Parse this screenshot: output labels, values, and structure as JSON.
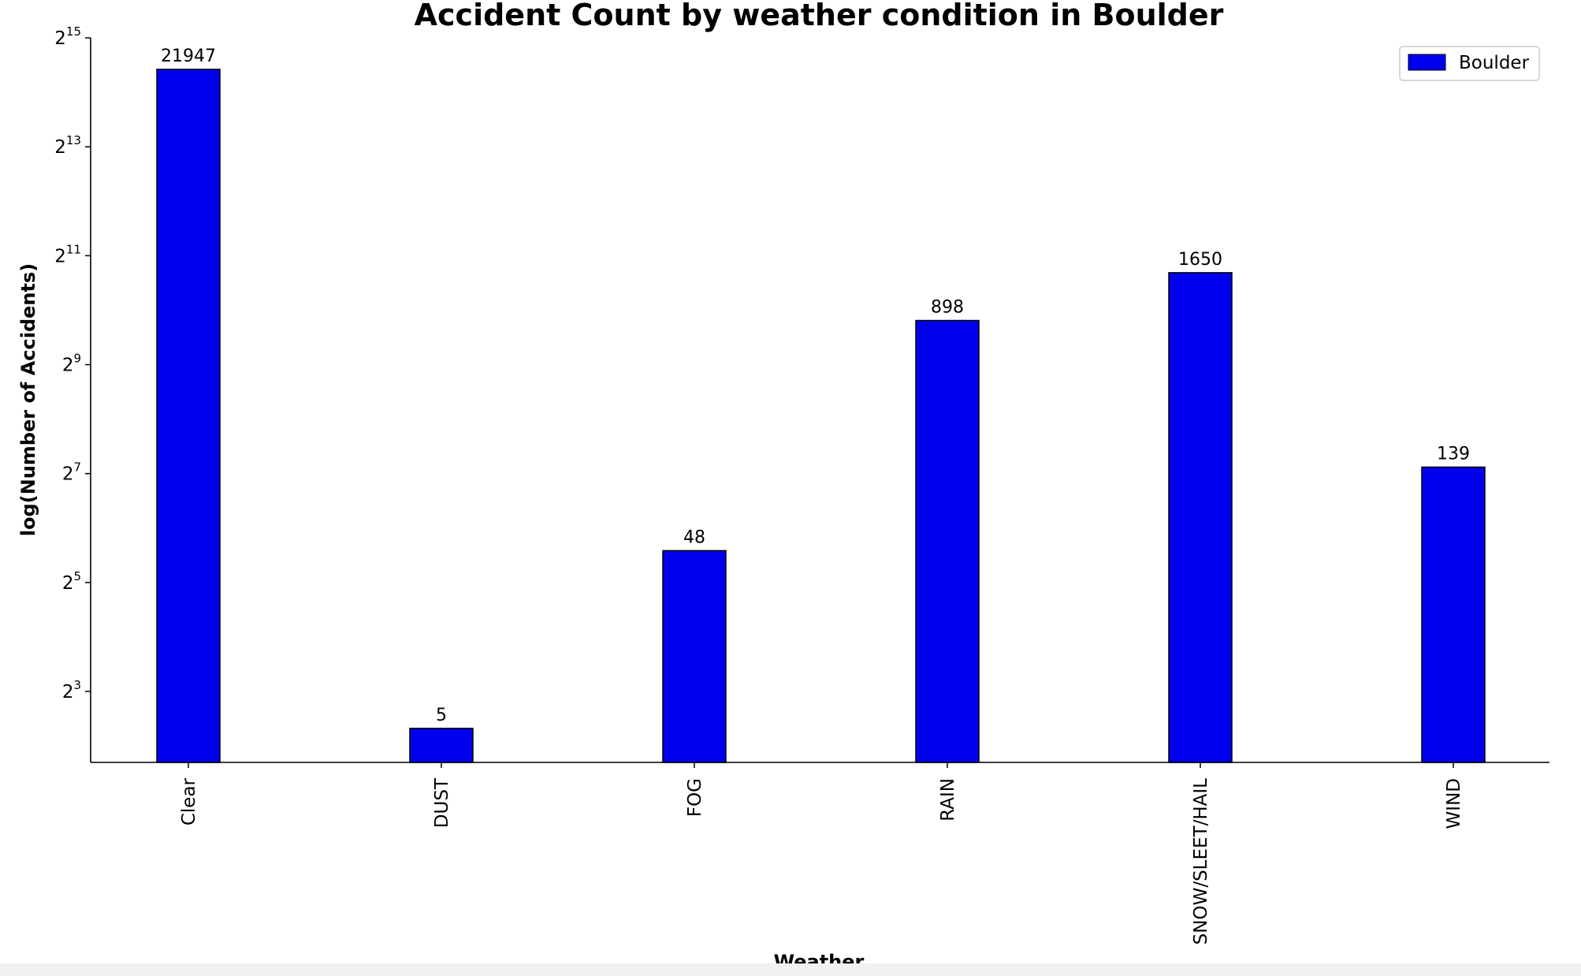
{
  "chart_data": {
    "type": "bar",
    "title": "Accident Count by weather condition in Boulder",
    "xlabel": "Weather",
    "ylabel": "log(Number of Accidents)",
    "categories": [
      "Clear",
      "DUST",
      "FOG",
      "RAIN",
      "SNOW/SLEET/HAIL",
      "WIND"
    ],
    "series": [
      {
        "name": "Boulder",
        "values": [
          21947,
          5,
          48,
          898,
          1650,
          139
        ],
        "color": "#0000ee"
      }
    ],
    "y_scale": "log2",
    "ylim": [
      2.7,
      28000
    ],
    "yticks": [
      {
        "base": "2",
        "exp": "3",
        "value": 8
      },
      {
        "base": "2",
        "exp": "5",
        "value": 32
      },
      {
        "base": "2",
        "exp": "7",
        "value": 128
      },
      {
        "base": "2",
        "exp": "9",
        "value": 512
      },
      {
        "base": "2",
        "exp": "11",
        "value": 2048
      },
      {
        "base": "2",
        "exp": "13",
        "value": 8192
      },
      {
        "base": "2",
        "exp": "15",
        "value": 32768
      }
    ],
    "legend_position": "top-right",
    "grid": false,
    "bar_edge_color": "#000000"
  }
}
